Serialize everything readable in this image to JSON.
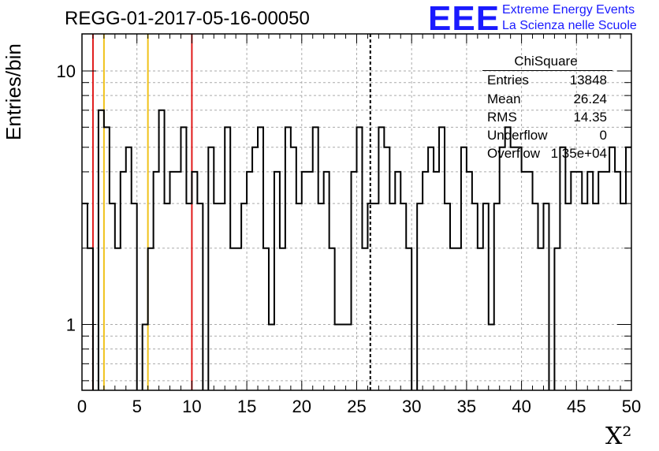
{
  "header": {
    "run_title": "REGG-01-2017-05-16-00050",
    "logo_text": "EEE",
    "logo_line1": "Extreme Energy Events",
    "logo_line2": "La Scienza nelle Scuole"
  },
  "colors": {
    "red_marker": "#e11a1a",
    "yellow_marker": "#f0c21a",
    "logo": "#1a1aff"
  },
  "stats": {
    "title": "ChiSquare",
    "rows": [
      {
        "key": "Entries",
        "value": "13848"
      },
      {
        "key": "Mean",
        "value": "26.24"
      },
      {
        "key": "RMS",
        "value": "14.35"
      },
      {
        "key": "Underflow",
        "value": "0"
      },
      {
        "key": "Overflow",
        "value": "1.35e+04"
      }
    ]
  },
  "chart_data": {
    "type": "histogram",
    "title": "REGG-01-2017-05-16-00050",
    "xlabel": "X²",
    "ylabel": "Entries/bin",
    "xlim": [
      0,
      50
    ],
    "ylim": [
      0.55,
      14
    ],
    "yscale": "log",
    "grid": true,
    "bin_width": 0.5,
    "bin_contents": [
      3,
      2,
      0,
      7,
      6,
      3,
      2,
      4,
      5,
      3,
      0,
      1,
      2,
      4,
      7,
      3,
      4,
      4,
      6,
      3,
      4,
      3,
      0,
      5,
      3,
      3,
      6,
      2,
      2,
      3,
      4,
      5,
      6,
      2,
      1,
      4,
      2,
      6,
      5,
      3,
      4,
      4,
      6,
      3,
      4,
      2,
      1,
      1,
      1,
      4,
      6,
      2,
      3,
      3,
      6,
      5,
      3,
      4,
      3,
      2,
      0,
      3,
      4,
      5,
      4,
      6,
      3,
      2,
      2,
      5,
      4,
      3,
      2,
      3,
      1,
      3,
      5,
      6,
      5,
      5,
      4,
      4,
      3,
      2,
      3,
      0,
      2,
      5,
      3,
      4,
      4,
      3,
      4,
      3,
      4,
      4,
      5,
      4,
      3,
      5
    ],
    "x_ticks": [
      0,
      5,
      10,
      15,
      20,
      25,
      30,
      35,
      40,
      45,
      50
    ],
    "y_ticks": [
      1,
      10
    ],
    "vertical_lines": [
      {
        "x": 1,
        "color": "red",
        "style": "solid"
      },
      {
        "x": 2,
        "color": "yellow",
        "style": "solid"
      },
      {
        "x": 6,
        "color": "yellow",
        "style": "solid"
      },
      {
        "x": 10,
        "color": "red",
        "style": "solid"
      },
      {
        "x": 26.24,
        "color": "black",
        "style": "dashed"
      }
    ]
  }
}
